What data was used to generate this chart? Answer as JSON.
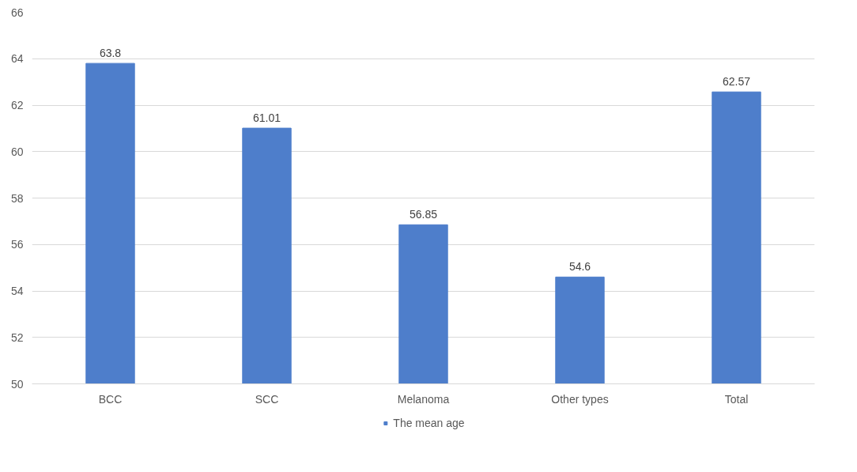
{
  "chart_data": {
    "type": "bar",
    "categories": [
      "BCC",
      "SCC",
      "Melanoma",
      "Other types",
      "Total"
    ],
    "series": [
      {
        "name": "The mean age",
        "color": "#4e7ecb",
        "values": [
          63.8,
          61.01,
          56.85,
          54.6,
          62.57
        ]
      }
    ],
    "ylim": [
      50,
      66
    ],
    "yticks": [
      50,
      52,
      54,
      56,
      58,
      60,
      62,
      64,
      66
    ],
    "grid": "y",
    "legend": "bottom",
    "data_labels": true
  }
}
